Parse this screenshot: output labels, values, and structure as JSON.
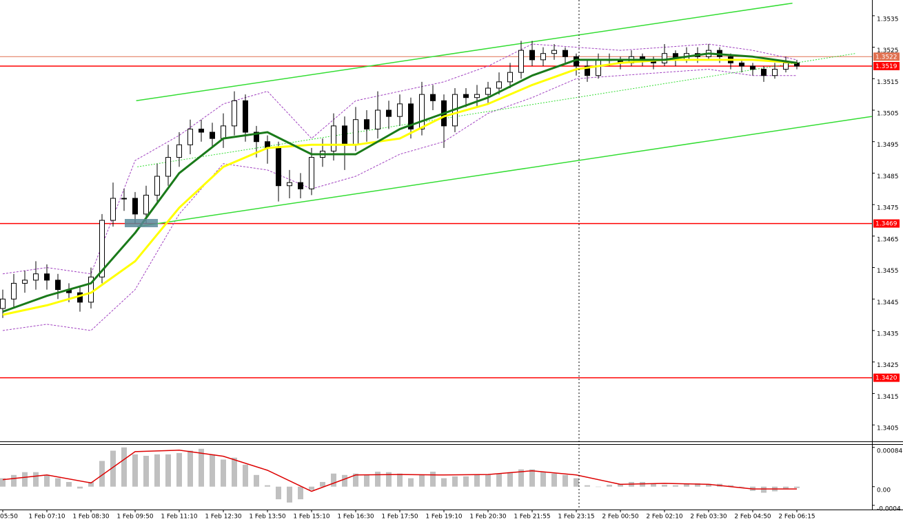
{
  "chart_data": [
    {
      "type": "candlestick",
      "categories": [
        "05:50",
        null,
        null,
        null,
        "1 Feb 07:10",
        null,
        null,
        null,
        "1 Feb 08:30",
        null,
        null,
        null,
        "1 Feb 09:50",
        null,
        null,
        null,
        "1 Feb 11:10",
        null,
        null,
        null,
        "1 Feb 12:30",
        null,
        null,
        null,
        "1 Feb 13:50",
        null,
        null,
        null,
        "1 Feb 15:10",
        null,
        null,
        null,
        "1 Feb 16:30",
        null,
        null,
        null,
        "1 Feb 17:50",
        null,
        null,
        null,
        "1 Feb 19:10",
        null,
        null,
        null,
        "1 Feb 20:30",
        null,
        null,
        null,
        "1 Feb 21:55",
        null,
        null,
        null,
        "1 Feb 23:15",
        null,
        null,
        null,
        "2 Feb 00:50",
        null,
        null,
        null,
        "2 Feb 02:10",
        null,
        null,
        null,
        "2 Feb 03:30",
        null,
        null,
        null,
        "2 Feb 04:50",
        null,
        null,
        null,
        "2 Feb 06:15"
      ],
      "open": [
        1.3442,
        1.3445,
        1.345,
        1.3451,
        1.3453,
        1.3451,
        1.3448,
        1.3447,
        1.3444,
        1.3452,
        1.347,
        1.3477,
        1.3477,
        1.3472,
        1.3478,
        1.3484,
        1.349,
        1.3494,
        1.3499,
        1.3498,
        1.3496,
        1.35,
        1.3508,
        1.3498,
        1.3495,
        1.3493,
        1.3481,
        1.3482,
        1.348,
        1.349,
        1.3492,
        1.35,
        1.3494,
        1.3502,
        1.3499,
        1.3505,
        1.3503,
        1.3507,
        1.3499,
        1.351,
        1.3508,
        1.35,
        1.351,
        1.3509,
        1.351,
        1.3512,
        1.3514,
        1.3517,
        1.3524,
        1.3521,
        1.3523,
        1.3524,
        1.3522,
        1.3519,
        1.3516,
        1.3521,
        1.3521,
        1.352,
        1.3522,
        1.3521,
        1.352,
        1.3523,
        1.3521,
        1.3523,
        1.3522,
        1.3524,
        1.3522,
        1.352,
        1.3519,
        1.3518,
        1.3516,
        1.3518,
        1.352
      ],
      "high": [
        1.3448,
        1.3453,
        1.3454,
        1.3457,
        1.3456,
        1.3453,
        1.345,
        1.3449,
        1.3455,
        1.3472,
        1.3482,
        1.348,
        1.3479,
        1.3481,
        1.3488,
        1.3494,
        1.3498,
        1.3502,
        1.3502,
        1.3501,
        1.3504,
        1.3511,
        1.351,
        1.35,
        1.3497,
        1.3495,
        1.3486,
        1.3485,
        1.3493,
        1.3496,
        1.3504,
        1.3503,
        1.3506,
        1.3505,
        1.3511,
        1.3508,
        1.351,
        1.3509,
        1.3514,
        1.3513,
        1.351,
        1.3512,
        1.3512,
        1.3513,
        1.3514,
        1.3517,
        1.352,
        1.3527,
        1.3527,
        1.3525,
        1.3526,
        1.3525,
        1.3523,
        1.3521,
        1.3523,
        1.3523,
        1.3522,
        1.3524,
        1.3523,
        1.3522,
        1.3526,
        1.3524,
        1.3525,
        1.3525,
        1.3526,
        1.3525,
        1.3523,
        1.3521,
        1.352,
        1.3519,
        1.352,
        1.3522,
        1.3521
      ],
      "low": [
        1.3439,
        1.3442,
        1.3447,
        1.3448,
        1.3448,
        1.3445,
        1.3444,
        1.3441,
        1.3442,
        1.345,
        1.3468,
        1.3473,
        1.3469,
        1.3469,
        1.3476,
        1.3481,
        1.3487,
        1.3491,
        1.3495,
        1.3493,
        1.3493,
        1.3497,
        1.3495,
        1.349,
        1.3488,
        1.3476,
        1.3477,
        1.3477,
        1.3478,
        1.3487,
        1.3489,
        1.3486,
        1.3492,
        1.3495,
        1.3496,
        1.3499,
        1.35,
        1.3496,
        1.3497,
        1.3505,
        1.3493,
        1.3498,
        1.3506,
        1.3506,
        1.3507,
        1.351,
        1.3512,
        1.3515,
        1.3519,
        1.3519,
        1.3521,
        1.352,
        1.3516,
        1.3514,
        1.3515,
        1.3519,
        1.3518,
        1.3519,
        1.3519,
        1.3518,
        1.3519,
        1.3519,
        1.352,
        1.352,
        1.3521,
        1.352,
        1.3518,
        1.3517,
        1.3516,
        1.3514,
        1.3515,
        1.3517,
        1.3518
      ],
      "close": [
        1.3445,
        1.345,
        1.3451,
        1.3453,
        1.3451,
        1.3448,
        1.3447,
        1.3444,
        1.3452,
        1.347,
        1.3477,
        1.3477,
        1.3472,
        1.3478,
        1.3484,
        1.349,
        1.3494,
        1.3499,
        1.3498,
        1.3496,
        1.35,
        1.3508,
        1.3498,
        1.3495,
        1.3493,
        1.3481,
        1.3482,
        1.348,
        1.349,
        1.3492,
        1.35,
        1.3494,
        1.3502,
        1.3499,
        1.3505,
        1.3503,
        1.3507,
        1.3499,
        1.351,
        1.3508,
        1.35,
        1.351,
        1.3509,
        1.351,
        1.3512,
        1.3514,
        1.3517,
        1.3524,
        1.3521,
        1.3523,
        1.3524,
        1.3522,
        1.3519,
        1.3516,
        1.3521,
        1.3521,
        1.352,
        1.3522,
        1.3521,
        1.352,
        1.3523,
        1.3521,
        1.3523,
        1.3522,
        1.3524,
        1.3522,
        1.352,
        1.3519,
        1.3518,
        1.3516,
        1.3518,
        1.352,
        1.3519
      ],
      "up_color": "#ffffff",
      "down_color": "#000000",
      "wick_color": "#000000",
      "series": [
        {
          "color": "#a040c0",
          "style": "dashed",
          "x": [
            0,
            4,
            8,
            12,
            16,
            20,
            24,
            28,
            32,
            36,
            40,
            44,
            48,
            52,
            56,
            60,
            64,
            68,
            72
          ],
          "values": [
            1.3453,
            1.3455,
            1.3453,
            1.3489,
            1.3497,
            1.3507,
            1.3511,
            1.3496,
            1.3508,
            1.3511,
            1.3514,
            1.3519,
            1.3526,
            1.3525,
            1.3524,
            1.3525,
            1.3526,
            1.3524,
            1.3521
          ]
        },
        {
          "color": "#a040c0",
          "style": "dashed",
          "x": [
            0,
            4,
            8,
            12,
            16,
            20,
            24,
            28,
            32,
            36,
            40,
            44,
            48,
            52,
            56,
            60,
            64,
            68,
            72
          ],
          "values": [
            1.3435,
            1.3437,
            1.3435,
            1.3448,
            1.3472,
            1.3488,
            1.3486,
            1.348,
            1.3484,
            1.3491,
            1.3495,
            1.3504,
            1.3509,
            1.3515,
            1.3516,
            1.3517,
            1.3518,
            1.3516,
            1.3516
          ]
        },
        {
          "color": "#33dd33",
          "style": "solid",
          "x": [
            12.1,
            71.6
          ],
          "values": [
            1.3508,
            1.3539
          ]
        },
        {
          "color": "#33dd33",
          "style": "solid",
          "x": [
            12.2,
            78.8
          ],
          "values": [
            1.3468,
            1.3503
          ]
        },
        {
          "color": "#33dd33",
          "style": "dotted",
          "x": [
            12.2,
            77.3
          ],
          "values": [
            1.3487,
            1.3523
          ]
        },
        {
          "color": "#ffff00",
          "style": "thick",
          "x": [
            0,
            4,
            8,
            12,
            16,
            20,
            24,
            28,
            32,
            36,
            40,
            44,
            48,
            52,
            56,
            60,
            64,
            68,
            72
          ],
          "values": [
            1.344,
            1.3443,
            1.3447,
            1.3457,
            1.3474,
            1.3487,
            1.3493,
            1.3494,
            1.3494,
            1.3496,
            1.3503,
            1.3507,
            1.3513,
            1.3518,
            1.352,
            1.3521,
            1.3521,
            1.3521,
            1.352
          ]
        },
        {
          "color": "#1a7a1a",
          "style": "thick",
          "x": [
            0,
            4,
            8,
            12,
            16,
            20,
            24,
            28,
            32,
            36,
            40,
            44,
            48,
            52,
            56,
            60,
            64,
            68,
            72
          ],
          "values": [
            1.3441,
            1.3446,
            1.345,
            1.3466,
            1.3485,
            1.3496,
            1.3498,
            1.3491,
            1.3491,
            1.3499,
            1.3504,
            1.3509,
            1.3516,
            1.3521,
            1.3521,
            1.3521,
            1.3523,
            1.3522,
            1.352
          ]
        }
      ],
      "levels": [
        {
          "value": 1.3522,
          "color": "#e07050"
        },
        {
          "value": 1.3519,
          "color": "#ff0000"
        },
        {
          "value": 1.3469,
          "color": "#ff0000"
        },
        {
          "value": 1.342,
          "label": "1.3420",
          "color": "#ff0000"
        }
      ],
      "ylim": [
        1.34,
        1.354
      ],
      "yticks": [
        1.3535,
        1.3525,
        1.3515,
        1.3505,
        1.3495,
        1.3485,
        1.3475,
        1.3465,
        1.3455,
        1.3445,
        1.3435,
        1.3425,
        1.3415,
        1.3405
      ]
    },
    {
      "type": "bar",
      "values": [
        0.00018,
        0.00025,
        0.00031,
        0.00031,
        0.00025,
        0.00018,
        0.0001,
        -4e-05,
        0.0001,
        0.00055,
        0.00077,
        0.00084,
        0.00069,
        0.00066,
        0.00069,
        0.00069,
        0.00072,
        0.00077,
        0.00081,
        0.00069,
        0.00058,
        0.00062,
        0.00047,
        0.00025,
        3e-05,
        -0.00027,
        -0.00034,
        -0.00027,
        -7e-05,
        0.0001,
        0.00028,
        0.00025,
        0.00028,
        0.00025,
        0.00032,
        0.00031,
        0.00028,
        0.00018,
        0.00025,
        0.00032,
        0.00018,
        0.00022,
        0.00022,
        0.00025,
        0.00025,
        0.00028,
        0.00031,
        0.00037,
        0.00037,
        0.00032,
        0.00028,
        0.00025,
        0.00018,
        3e-05,
        0,
        4e-05,
        6e-05,
        0.0001,
        0.0001,
        6e-05,
        4e-05,
        3e-05,
        6e-05,
        7e-05,
        6e-05,
        6e-05,
        3e-05,
        -1e-05,
        -9e-05,
        -0.00013,
        -0.0001,
        -4e-05,
        -3e-05
      ],
      "color": "#c0c0c0",
      "series": [
        {
          "color": "#dd0000",
          "style": "solid",
          "x": [
            0,
            4,
            8,
            12,
            16,
            20,
            24,
            28,
            32,
            36,
            40,
            44,
            48,
            52,
            56,
            60,
            64,
            68,
            72
          ],
          "values": [
            0.00015,
            0.00025,
            8e-05,
            0.00075,
            0.00078,
            0.00065,
            0.00035,
            -0.0001,
            0.00025,
            0.00026,
            0.00025,
            0.00026,
            0.00034,
            0.00025,
            5e-05,
            7e-05,
            5e-05,
            -5e-05,
            -5e-05
          ]
        }
      ],
      "ylim": [
        -0.00049,
        0.00091
      ],
      "yticks": [
        0.00084,
        {
          "value": 0,
          "label": "0.00"
        },
        -0.0004
      ]
    }
  ]
}
